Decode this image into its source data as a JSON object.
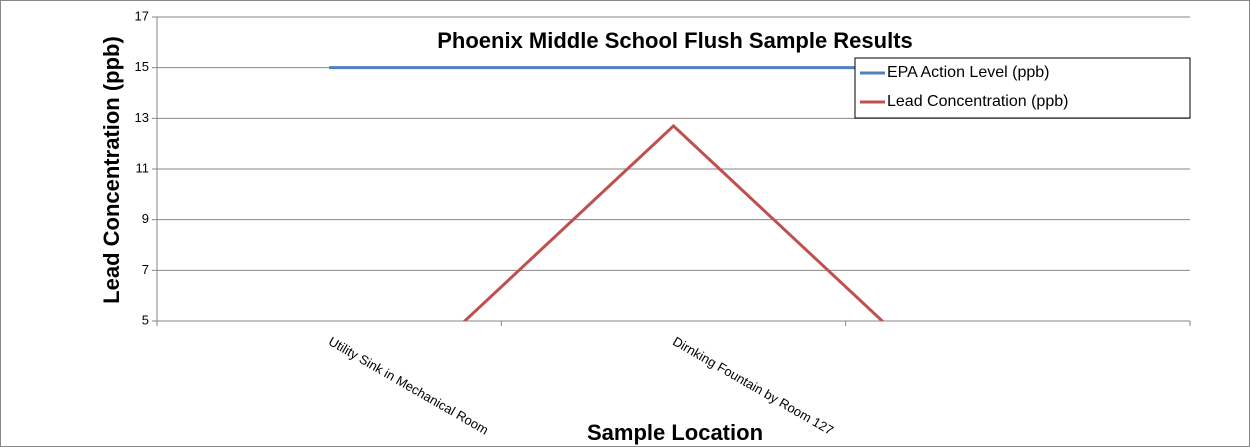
{
  "chart_data": {
    "type": "line",
    "title": "Phoenix Middle School Flush Sample Results",
    "x_label": "Sample Location",
    "y_label": "Lead Concentration (ppb)",
    "categories": [
      "Utility Sink in Mechanical Room",
      "Dirnking Fountain by Room 127",
      null
    ],
    "series": [
      {
        "name": "EPA Action Level (ppb)",
        "color": "#4f81bd",
        "values": [
          15,
          15,
          15
        ]
      },
      {
        "name": "Lead Concentration (ppb)",
        "color": "#c0504d",
        "values": [
          0,
          12.7,
          0
        ]
      }
    ],
    "ylim": [
      5,
      17
    ],
    "yticks": [
      5,
      7,
      9,
      11,
      13,
      15,
      17
    ],
    "grid": true,
    "legend": "upper right"
  }
}
